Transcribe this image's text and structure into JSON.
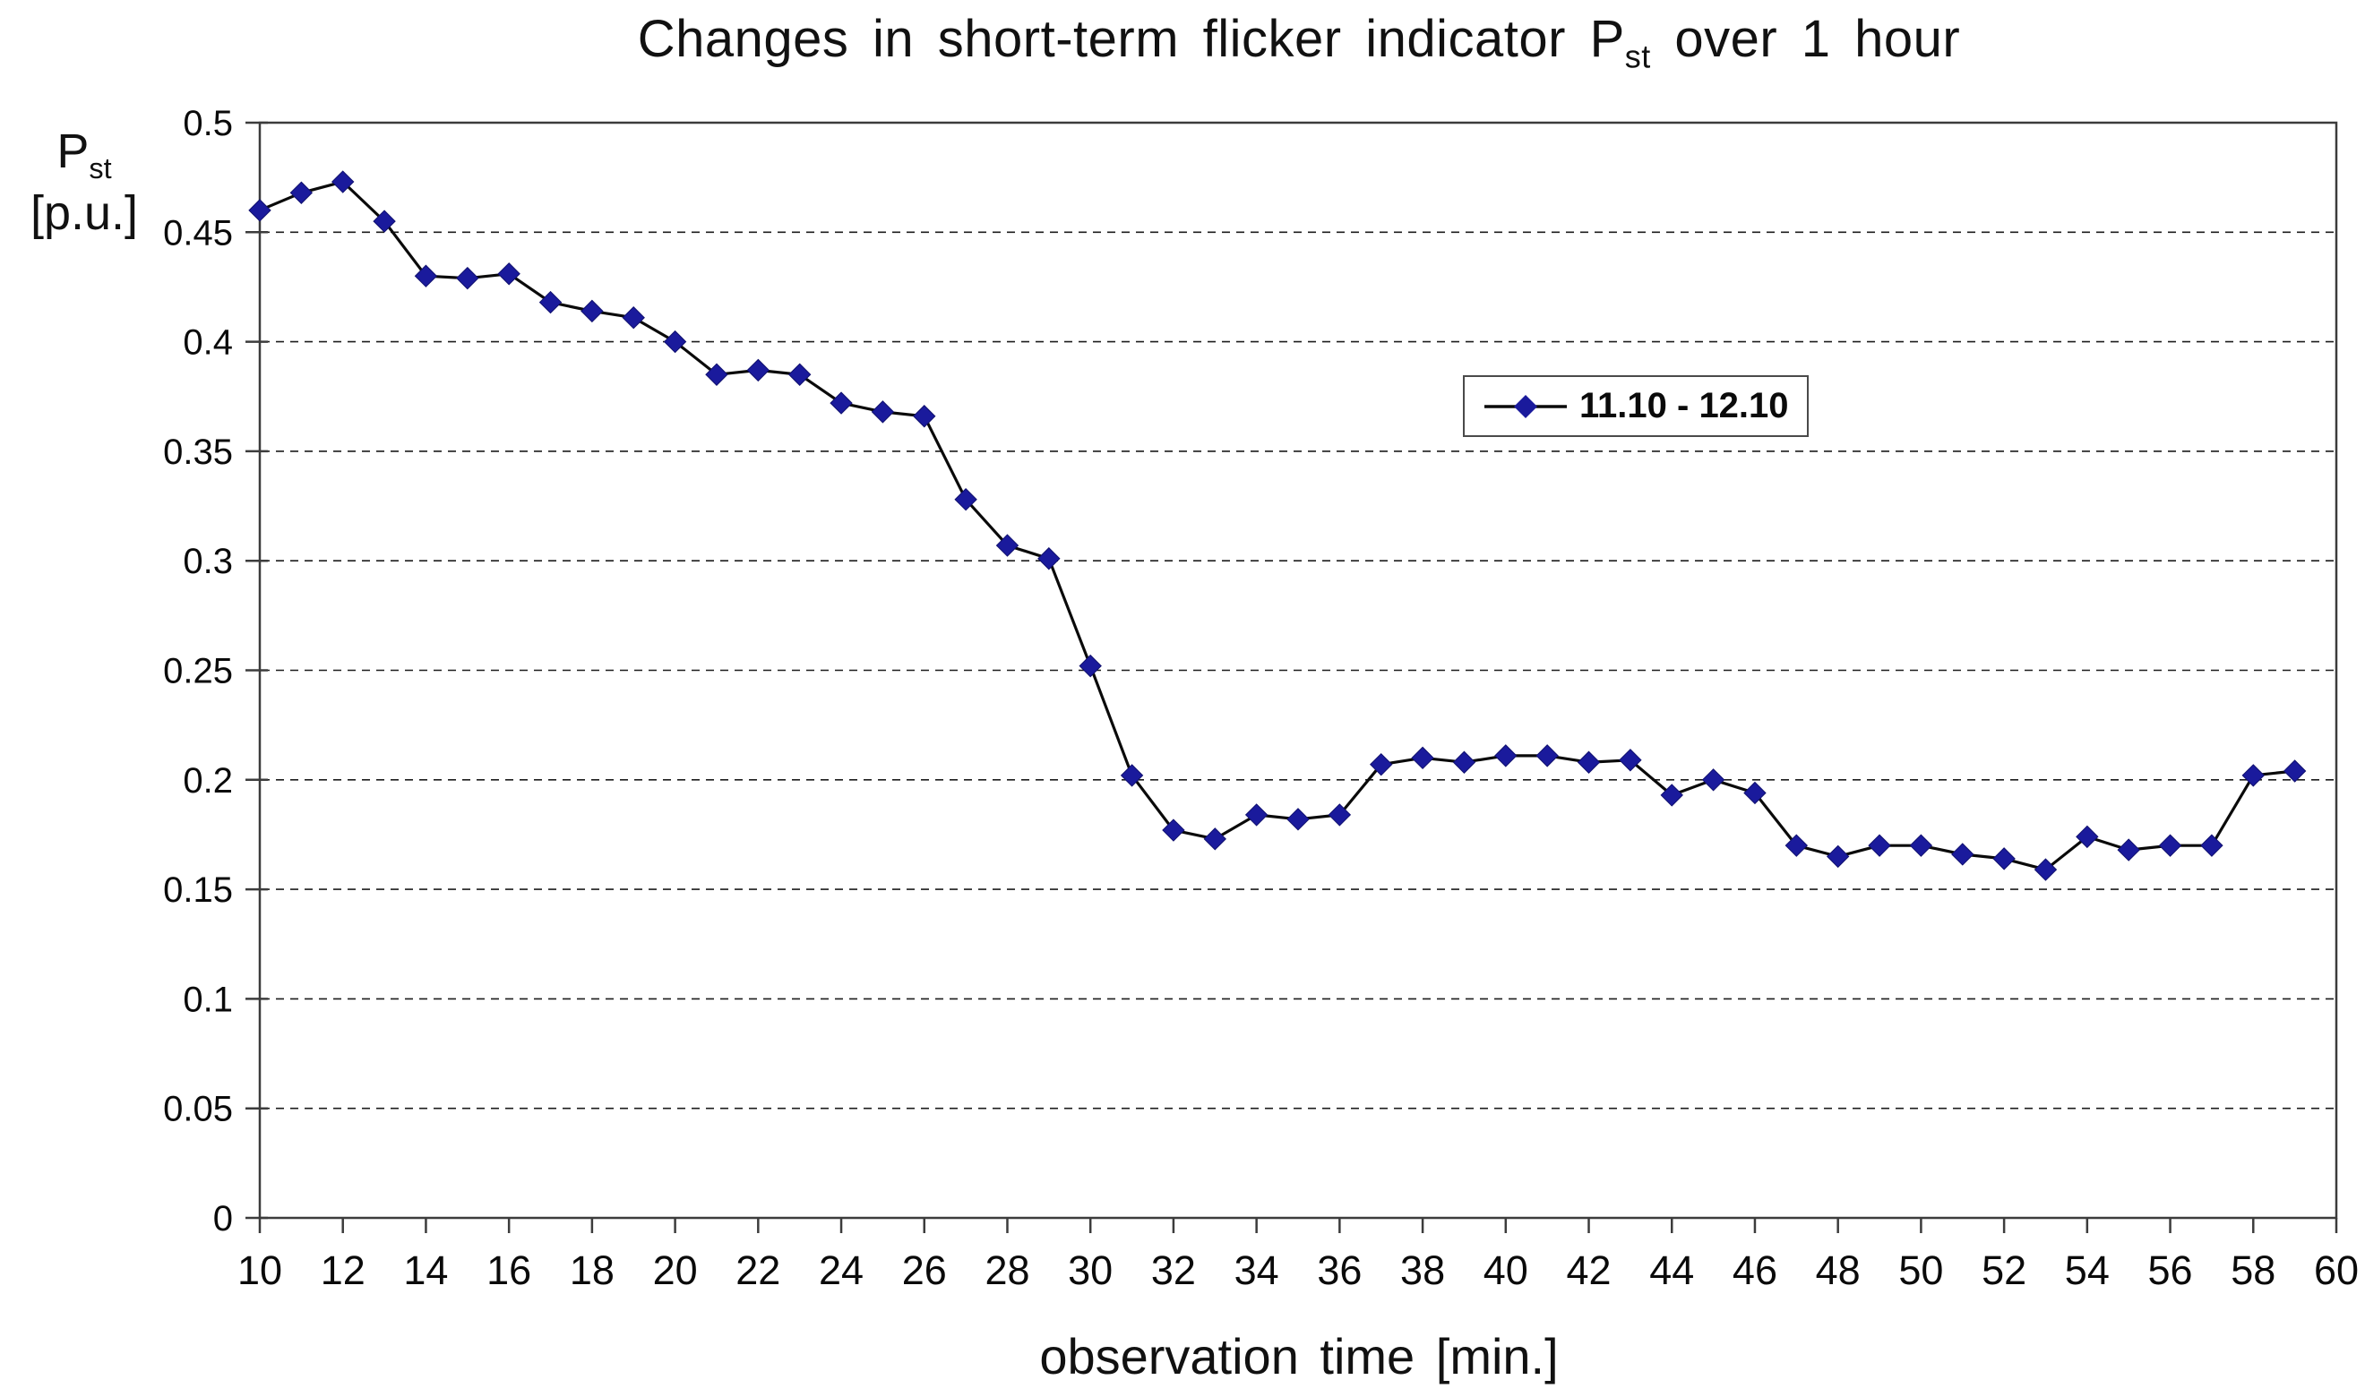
{
  "title": {
    "prefix": "Changes in short-term flicker indicator P",
    "sub": "st",
    "suffix": " over 1 hour"
  },
  "y_axis": {
    "label_symbol": "P",
    "label_symbol_sub": "st",
    "label_unit": "[p.u.]",
    "tick_labels": [
      "0.5",
      "0.45",
      "0.4",
      "0.35",
      "0.3",
      "0.25",
      "0.2",
      "0.15",
      "0.1",
      "0.05",
      "0"
    ]
  },
  "x_axis": {
    "label": "observation time [min.]",
    "tick_labels": [
      "10",
      "12",
      "14",
      "16",
      "18",
      "20",
      "22",
      "24",
      "26",
      "28",
      "30",
      "32",
      "34",
      "36",
      "38",
      "40",
      "42",
      "44",
      "46",
      "48",
      "50",
      "52",
      "54",
      "56",
      "58",
      "60"
    ]
  },
  "legend": {
    "label": "11.10 - 12.10",
    "line_color": "#0a0a0a",
    "marker_color": "#1a1a9c"
  },
  "chart_data": {
    "type": "line",
    "title": "Changes in short-term flicker indicator Pst over 1 hour",
    "xlabel": "observation time [min.]",
    "ylabel": "Pst [p.u.]",
    "xlim": [
      10,
      60
    ],
    "ylim": [
      0,
      0.5
    ],
    "x_tick_step": 2,
    "y_tick_step": 0.05,
    "grid": "horizontal-dashed",
    "legend_position": "inside-upper-right",
    "marker": "diamond",
    "series": [
      {
        "name": "11.10 - 12.10",
        "color": "#0a0a0a",
        "marker_color": "#1a1a9c",
        "x": [
          10,
          11,
          12,
          13,
          14,
          15,
          16,
          17,
          18,
          19,
          20,
          21,
          22,
          23,
          24,
          25,
          26,
          27,
          28,
          29,
          30,
          31,
          32,
          33,
          34,
          35,
          36,
          37,
          38,
          39,
          40,
          41,
          42,
          43,
          44,
          45,
          46,
          47,
          48,
          49,
          50,
          51,
          52,
          53,
          54,
          55,
          56,
          57,
          58,
          59
        ],
        "y": [
          0.46,
          0.468,
          0.473,
          0.455,
          0.43,
          0.429,
          0.431,
          0.418,
          0.414,
          0.411,
          0.4,
          0.385,
          0.387,
          0.385,
          0.372,
          0.368,
          0.366,
          0.328,
          0.307,
          0.301,
          0.252,
          0.202,
          0.177,
          0.173,
          0.184,
          0.182,
          0.184,
          0.207,
          0.21,
          0.208,
          0.211,
          0.211,
          0.208,
          0.209,
          0.193,
          0.2,
          0.194,
          0.17,
          0.165,
          0.17,
          0.17,
          0.166,
          0.164,
          0.159,
          0.174,
          0.168,
          0.17,
          0.17,
          0.202,
          0.204
        ]
      }
    ]
  }
}
